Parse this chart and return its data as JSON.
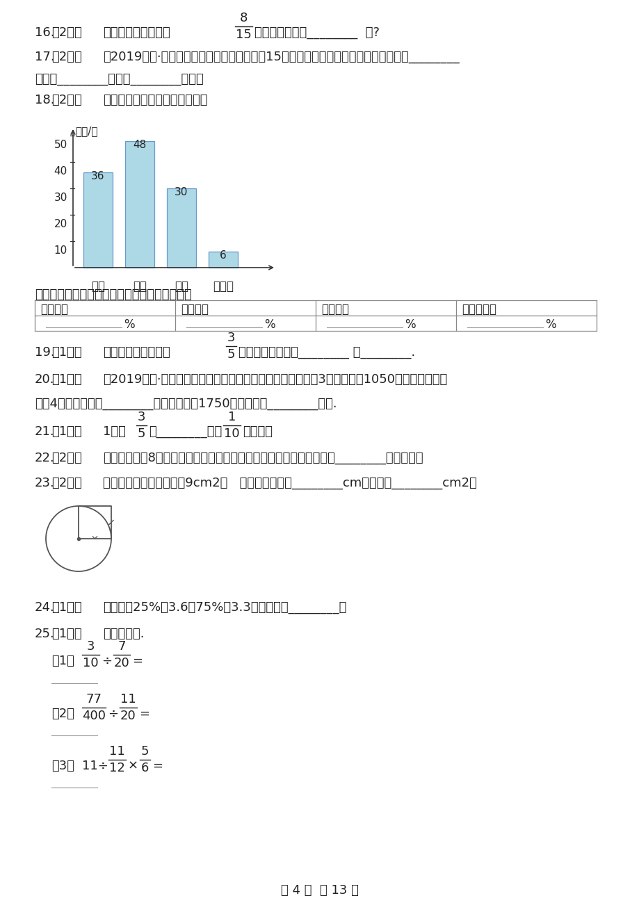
{
  "bg_color": "#ffffff",
  "bar_values": [
    36,
    48,
    30,
    6
  ],
  "bar_categories": [
    "优秀",
    "良好",
    "及格",
    "不及格"
  ],
  "bar_color": "#add8e6",
  "bar_edge_color": "#6699cc",
  "table_headers2": [
    "优秀人数",
    "良好人数",
    "及格人数",
    "不及格人数"
  ],
  "footer": "第 4 页  共 13 页"
}
